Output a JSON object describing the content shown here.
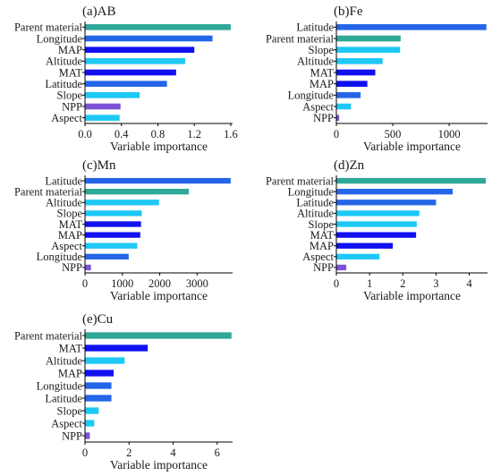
{
  "colors": {
    "teal": "#2fa898",
    "royal_blue": "#2566e8",
    "blue": "#1010f0",
    "cyan": "#1ec8f5",
    "purple": "#7b52d6"
  },
  "chart_data": [
    {
      "type": "bar",
      "orientation": "horizontal",
      "title": "(a)AB",
      "xlabel": "Variable importance",
      "ylabel": "",
      "xlim": [
        0,
        1.62
      ],
      "xticks": [
        0.0,
        0.4,
        0.8,
        1.2,
        1.6
      ],
      "xtick_labels": [
        "0.0",
        "0.4",
        "0.8",
        "1.2",
        "1.6"
      ],
      "grid": false,
      "categories": [
        "Parent material",
        "Longitude",
        "MAP",
        "Altitude",
        "MAT",
        "Latitude",
        "Slope",
        "NPP",
        "Aspect"
      ],
      "values": [
        1.6,
        1.4,
        1.2,
        1.1,
        1.0,
        0.9,
        0.6,
        0.39,
        0.38
      ],
      "bar_colors": [
        "#2fa898",
        "#2566e8",
        "#1010f0",
        "#1ec8f5",
        "#1010f0",
        "#2566e8",
        "#1ec8f5",
        "#7b52d6",
        "#1ec8f5"
      ]
    },
    {
      "type": "bar",
      "orientation": "horizontal",
      "title": "(b)Fe",
      "xlabel": "Variable importance",
      "ylabel": "",
      "xlim": [
        0,
        1340
      ],
      "xticks": [
        0,
        500,
        1000
      ],
      "xtick_labels": [
        "0",
        "500",
        "1000"
      ],
      "grid": false,
      "categories": [
        "Latitude",
        "Parent material",
        "Slope",
        "Altitude",
        "MAT",
        "MAP",
        "Longitude",
        "Aspect",
        "NPP"
      ],
      "values": [
        1330,
        570,
        565,
        410,
        345,
        275,
        215,
        130,
        25
      ],
      "bar_colors": [
        "#2566e8",
        "#2fa898",
        "#1ec8f5",
        "#1ec8f5",
        "#1010f0",
        "#1010f0",
        "#2566e8",
        "#1ec8f5",
        "#7b52d6"
      ]
    },
    {
      "type": "bar",
      "orientation": "horizontal",
      "title": "(c)Mn",
      "xlabel": "Variable importance",
      "ylabel": "",
      "xlim": [
        0,
        3950
      ],
      "xticks": [
        0,
        1000,
        2000,
        3000
      ],
      "xtick_labels": [
        "0",
        "1000",
        "2000",
        "3000"
      ],
      "grid": false,
      "categories": [
        "Latitude",
        "Parent material",
        "Altitude",
        "Slope",
        "MAT",
        "MAP",
        "Aspect",
        "Longitude",
        "NPP"
      ],
      "values": [
        3900,
        2780,
        1980,
        1520,
        1500,
        1480,
        1400,
        1170,
        160
      ],
      "bar_colors": [
        "#2566e8",
        "#2fa898",
        "#1ec8f5",
        "#1ec8f5",
        "#1010f0",
        "#1010f0",
        "#1ec8f5",
        "#2566e8",
        "#7b52d6"
      ]
    },
    {
      "type": "bar",
      "orientation": "horizontal",
      "title": "(d)Zn",
      "xlabel": "Variable importance",
      "ylabel": "",
      "xlim": [
        0,
        4.55
      ],
      "xticks": [
        0,
        1,
        2,
        3,
        4
      ],
      "xtick_labels": [
        "0",
        "1",
        "2",
        "3",
        "4"
      ],
      "grid": false,
      "categories": [
        "Parent material",
        "Longitude",
        "Latitude",
        "Altitude",
        "Slope",
        "MAT",
        "MAP",
        "Aspect",
        "NPP"
      ],
      "values": [
        4.5,
        3.5,
        3.0,
        2.5,
        2.42,
        2.4,
        1.7,
        1.3,
        0.3
      ],
      "bar_colors": [
        "#2fa898",
        "#2566e8",
        "#2566e8",
        "#1ec8f5",
        "#1ec8f5",
        "#1010f0",
        "#1010f0",
        "#1ec8f5",
        "#7b52d6"
      ]
    },
    {
      "type": "bar",
      "orientation": "horizontal",
      "title": "(e)Cu",
      "xlabel": "Variable importance",
      "ylabel": "",
      "xlim": [
        0,
        6.7
      ],
      "xticks": [
        0,
        2,
        4,
        6
      ],
      "xtick_labels": [
        "0",
        "2",
        "4",
        "6"
      ],
      "grid": false,
      "categories": [
        "Parent material",
        "MAT",
        "Altitude",
        "MAP",
        "Longitude",
        "Latitude",
        "Slope",
        "Aspect",
        "NPP"
      ],
      "values": [
        6.65,
        2.85,
        1.8,
        1.3,
        1.2,
        1.2,
        0.62,
        0.42,
        0.22
      ],
      "bar_colors": [
        "#2fa898",
        "#1010f0",
        "#1ec8f5",
        "#1010f0",
        "#2566e8",
        "#2566e8",
        "#1ec8f5",
        "#1ec8f5",
        "#7b52d6"
      ]
    }
  ]
}
